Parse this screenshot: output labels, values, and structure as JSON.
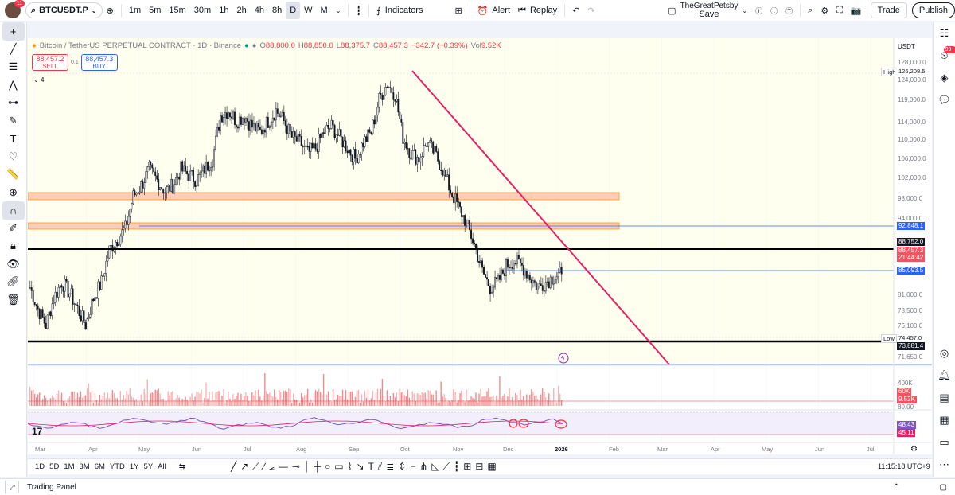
{
  "topbar": {
    "avatar_badge": "11",
    "symbol": "BTCUSDT.P",
    "intervals": [
      "1m",
      "5m",
      "15m",
      "30m",
      "1h",
      "2h",
      "4h",
      "8h",
      "D",
      "W",
      "M"
    ],
    "active_interval": "D",
    "indicators_label": "Indicators",
    "alert_label": "Alert",
    "replay_label": "Replay",
    "user_name": "TheGreatPetsby",
    "user_sub": "Save",
    "trade_label": "Trade",
    "publish_label": "Publish"
  },
  "legend": {
    "symbol_title": "Bitcoin / TetherUS PERPETUAL CONTRACT · 1D · Binance",
    "open_label": "O",
    "open": "88,800.0",
    "high_label": "H",
    "high": "88,850.0",
    "low_label": "L",
    "low": "88,375.7",
    "close_label": "C",
    "close": "88,457.3",
    "change": "−342.7 (−0.39%)",
    "vol_label": "Vol",
    "volume": "9.52K",
    "sell_price": "88,457.2",
    "sell_label": "SELL",
    "buy_price": "88,457.3",
    "buy_label": "BUY",
    "spread": "0.1",
    "collapsed_count": "4"
  },
  "price_axis": {
    "currency": "USDT",
    "ticks": [
      "128,000.0",
      "124,000.0",
      "119,000.0",
      "114,000.0",
      "110,000.0",
      "106,000.0",
      "102,000.0",
      "98,000.0",
      "94,000.0",
      "81,000.0",
      "78,500.0",
      "76,100.0",
      "71,650.0"
    ],
    "high_label": "High",
    "high_value": "126,208.5",
    "level1": "92,848.1",
    "level2": "88,752.0",
    "last_price": "88,457.3",
    "countdown": "21:44:42",
    "level3": "85,093.5",
    "low_label": "Low",
    "low_value": "74,457.0",
    "level4": "73,881.4",
    "vol_ticks": [
      "400K",
      "80.00"
    ],
    "vol_tag1": "60K",
    "vol_tag2": "9.52K",
    "rsi_tag1": "48.43",
    "rsi_tag2": "45.11"
  },
  "time_axis": {
    "labels": [
      "Mar",
      "Apr",
      "May",
      "Jun",
      "Jul",
      "Aug",
      "Sep",
      "Oct",
      "Nov",
      "Dec",
      "2026",
      "Feb",
      "Mar",
      "Apr",
      "May",
      "Jun",
      "Jul"
    ]
  },
  "rangebar": {
    "ranges": [
      "1D",
      "5D",
      "1M",
      "3M",
      "6M",
      "YTD",
      "1Y",
      "5Y",
      "All"
    ],
    "clock": "11:15:18 UTC+9"
  },
  "bottom": {
    "trading_panel": "Trading Panel",
    "notif_badge": "99+"
  },
  "chart_data": {
    "type": "candlestick",
    "title": "Bitcoin / TetherUS PERPETUAL CONTRACT · 1D · Binance",
    "ylim": [
      71650,
      128000
    ],
    "horizontal_levels": [
      92848.1,
      88752.0,
      85093.5,
      73881.4
    ],
    "high": 126208.5,
    "low": 74457.0,
    "last": 88457.3,
    "zones": [
      [
        97600,
        98700
      ],
      [
        92700,
        93400
      ]
    ],
    "trendline": {
      "from": [
        "Oct",
        126208.5
      ],
      "to": [
        "Feb",
        71650
      ]
    },
    "closes_approx": [
      86000,
      82000,
      79000,
      84000,
      87000,
      85000,
      82000,
      79000,
      84000,
      87000,
      93000,
      95000,
      97000,
      103000,
      105000,
      108000,
      106000,
      104000,
      105000,
      108000,
      107000,
      106000,
      108000,
      110000,
      118000,
      119000,
      117000,
      118000,
      116000,
      115000,
      117000,
      119000,
      117000,
      114000,
      113000,
      111000,
      112000,
      115000,
      116000,
      114000,
      112000,
      110000,
      113000,
      115000,
      121000,
      124000,
      122000,
      114000,
      111000,
      110000,
      113000,
      111000,
      108000,
      104000,
      101000,
      98000,
      94000,
      89000,
      86000,
      87000,
      90000,
      91000,
      90000,
      88000,
      86000,
      87000,
      88000,
      88500
    ]
  }
}
